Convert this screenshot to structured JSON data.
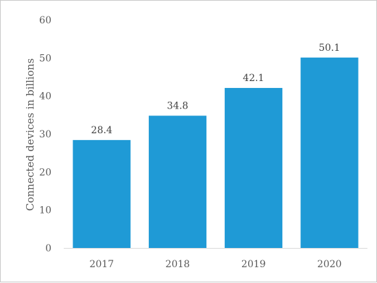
{
  "chart_data": {
    "type": "bar",
    "categories": [
      "2017",
      "2018",
      "2019",
      "2020"
    ],
    "values": [
      28.4,
      34.8,
      42.1,
      50.1
    ],
    "data_labels": [
      "28.4",
      "34.8",
      "42.1",
      "50.1"
    ],
    "title": "",
    "xlabel": "",
    "ylabel": "Connected devices in billions",
    "ylim": [
      0,
      60
    ],
    "yticks": [
      "0",
      "10",
      "20",
      "30",
      "40",
      "50",
      "60"
    ],
    "grid": false,
    "legend": "none",
    "bar_color": "#1f9ad6",
    "axis_color": "#d9d9d9"
  }
}
